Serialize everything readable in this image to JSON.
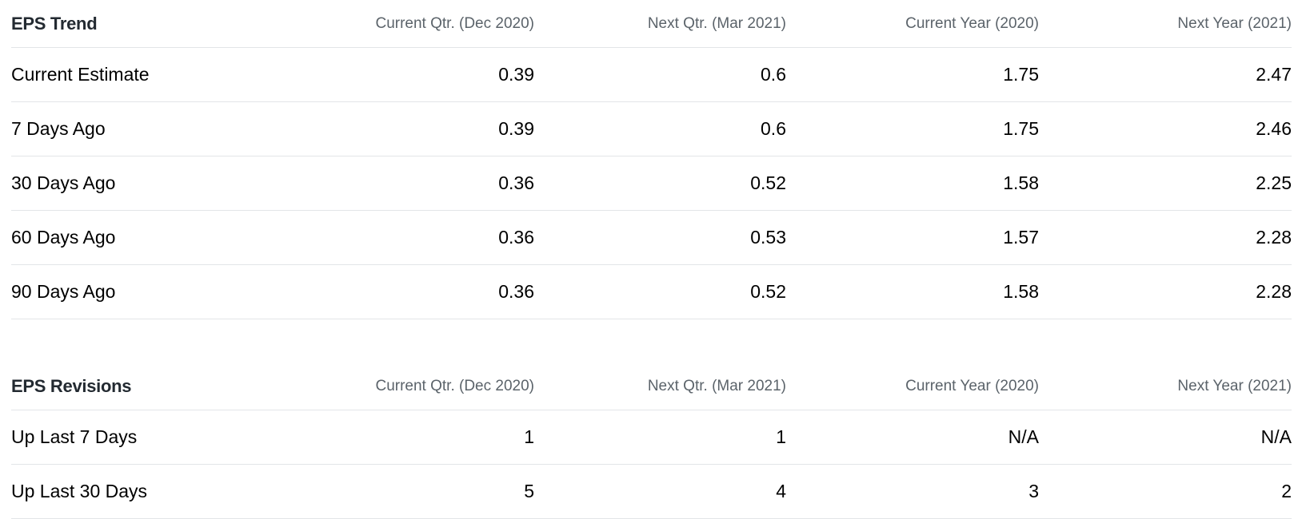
{
  "eps_trend": {
    "title": "EPS Trend",
    "columns": [
      "Current Qtr. (Dec 2020)",
      "Next Qtr. (Mar 2021)",
      "Current Year (2020)",
      "Next Year (2021)"
    ],
    "rows": [
      {
        "label": "Current Estimate",
        "values": [
          "0.39",
          "0.6",
          "1.75",
          "2.47"
        ]
      },
      {
        "label": "7 Days Ago",
        "values": [
          "0.39",
          "0.6",
          "1.75",
          "2.46"
        ]
      },
      {
        "label": "30 Days Ago",
        "values": [
          "0.36",
          "0.52",
          "1.58",
          "2.25"
        ]
      },
      {
        "label": "60 Days Ago",
        "values": [
          "0.36",
          "0.53",
          "1.57",
          "2.28"
        ]
      },
      {
        "label": "90 Days Ago",
        "values": [
          "0.36",
          "0.52",
          "1.58",
          "2.28"
        ]
      }
    ]
  },
  "eps_revisions": {
    "title": "EPS Revisions",
    "columns": [
      "Current Qtr. (Dec 2020)",
      "Next Qtr. (Mar 2021)",
      "Current Year (2020)",
      "Next Year (2021)"
    ],
    "rows": [
      {
        "label": "Up Last 7 Days",
        "values": [
          "1",
          "1",
          "N/A",
          "N/A"
        ]
      },
      {
        "label": "Up Last 30 Days",
        "values": [
          "5",
          "4",
          "3",
          "2"
        ]
      }
    ]
  }
}
